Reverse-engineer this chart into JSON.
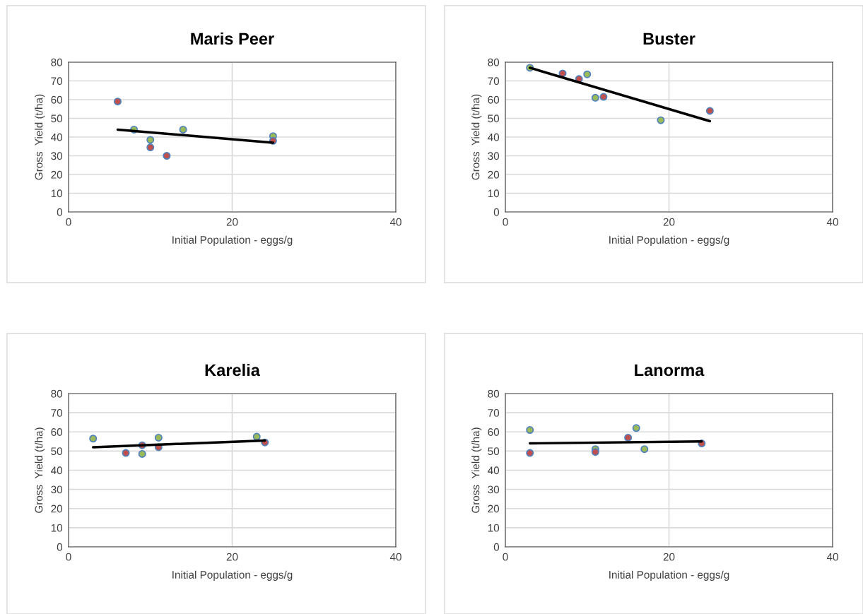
{
  "chart_data": [
    {
      "type": "scatter",
      "title": "Maris Peer",
      "xlabel": "Initial Population - eggs/g",
      "ylabel": "Gross  Yield (t/ha)",
      "xlim": [
        0,
        40
      ],
      "xticks": [
        0,
        20,
        40
      ],
      "ylim": [
        0,
        80
      ],
      "yticks": [
        0,
        10,
        20,
        30,
        40,
        50,
        60,
        70,
        80
      ],
      "grid": true,
      "series": [
        {
          "color": "#c0504d",
          "marker": "circle",
          "x": [
            6,
            10,
            12,
            25
          ],
          "values": [
            59,
            34.5,
            30,
            38
          ]
        },
        {
          "color": "#9bbb59",
          "marker": "circle",
          "x": [
            8,
            10,
            14,
            25
          ],
          "values": [
            44,
            38.5,
            44,
            40.5
          ]
        },
        {
          "type": "line",
          "color": "#000000",
          "marker": "none",
          "x": [
            6,
            25
          ],
          "values": [
            44,
            37
          ]
        }
      ]
    },
    {
      "type": "scatter",
      "title": "Buster",
      "xlabel": "Initial Population - eggs/g",
      "ylabel": "Gross  Yield (t/ha)",
      "xlim": [
        0,
        40
      ],
      "xticks": [
        0,
        20,
        40
      ],
      "ylim": [
        0,
        80
      ],
      "yticks": [
        0,
        10,
        20,
        30,
        40,
        50,
        60,
        70,
        80
      ],
      "grid": true,
      "series": [
        {
          "color": "#c0504d",
          "marker": "circle",
          "x": [
            7,
            9,
            12,
            25
          ],
          "values": [
            74,
            71,
            61.5,
            54
          ]
        },
        {
          "color": "#9bbb59",
          "marker": "circle",
          "x": [
            3,
            10,
            11,
            19
          ],
          "values": [
            77,
            73.5,
            61,
            49
          ]
        },
        {
          "type": "line",
          "color": "#000000",
          "marker": "none",
          "x": [
            3,
            25
          ],
          "values": [
            77,
            48.5
          ]
        }
      ]
    },
    {
      "type": "scatter",
      "title": "Karelia",
      "xlabel": "Initial Population - eggs/g",
      "ylabel": "Gross  Yield (t/ha)",
      "xlim": [
        0,
        40
      ],
      "xticks": [
        0,
        20,
        40
      ],
      "ylim": [
        0,
        80
      ],
      "yticks": [
        0,
        10,
        20,
        30,
        40,
        50,
        60,
        70,
        80
      ],
      "grid": true,
      "series": [
        {
          "color": "#c0504d",
          "marker": "circle",
          "x": [
            7,
            9,
            11,
            24
          ],
          "values": [
            49,
            53,
            52,
            54.5
          ]
        },
        {
          "color": "#9bbb59",
          "marker": "circle",
          "x": [
            3,
            9,
            11,
            23
          ],
          "values": [
            56.5,
            48.5,
            57,
            57.5
          ]
        },
        {
          "type": "line",
          "color": "#000000",
          "marker": "none",
          "x": [
            3,
            24
          ],
          "values": [
            52,
            55.5
          ]
        }
      ]
    },
    {
      "type": "scatter",
      "title": "Lanorma",
      "xlabel": "Initial Population - eggs/g",
      "ylabel": "Gross  Yield (t/ha)",
      "xlim": [
        0,
        40
      ],
      "xticks": [
        0,
        20,
        40
      ],
      "ylim": [
        0,
        80
      ],
      "yticks": [
        0,
        10,
        20,
        30,
        40,
        50,
        60,
        70,
        80
      ],
      "grid": true,
      "series": [
        {
          "color": "#c0504d",
          "marker": "circle",
          "x": [
            3,
            11,
            15,
            24
          ],
          "values": [
            49,
            49.5,
            57,
            54
          ]
        },
        {
          "color": "#9bbb59",
          "marker": "circle",
          "x": [
            3,
            11,
            16,
            17
          ],
          "values": [
            61,
            51,
            62,
            51
          ]
        },
        {
          "type": "line",
          "color": "#000000",
          "marker": "none",
          "x": [
            3,
            24
          ],
          "values": [
            54,
            55
          ]
        }
      ]
    }
  ]
}
